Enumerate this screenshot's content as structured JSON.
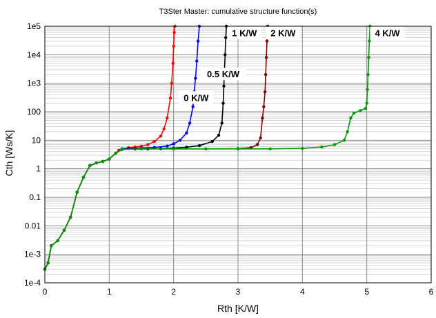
{
  "chart_data": {
    "type": "line",
    "title": "T3Ster Master: cumulative structure function(s)",
    "xlabel": "Rth  [K/W]",
    "ylabel": "Cth  [Ws/K]",
    "xlim": [
      0,
      6
    ],
    "ylim": [
      0.0001,
      100000
    ],
    "y_scale": "log",
    "grid": true,
    "x_ticks": [
      "0",
      "1",
      "2",
      "3",
      "4",
      "5",
      "6"
    ],
    "y_ticks": [
      "1e-4",
      "1e-3",
      "0.01",
      "0.1",
      "1",
      "10",
      "100",
      "1e3",
      "1e4",
      "1e5"
    ],
    "x_tick_values": [
      0,
      1,
      2,
      3,
      4,
      5,
      6
    ],
    "y_tick_values": [
      0.0001,
      0.001,
      0.01,
      0.1,
      1,
      10,
      100,
      1000,
      10000,
      100000
    ],
    "series": [
      {
        "name": "0 K/W",
        "color": "#ff0000",
        "x": [
          0.0,
          0.05,
          0.1,
          0.2,
          0.3,
          0.4,
          0.5,
          0.6,
          0.7,
          0.8,
          0.9,
          1.0,
          1.1,
          1.15,
          1.2,
          1.3,
          1.4,
          1.5,
          1.6,
          1.7,
          1.8,
          1.85,
          1.9,
          1.95,
          1.97,
          1.99,
          2.0,
          2.01,
          2.02
        ],
        "y": [
          0.0003,
          0.0005,
          0.002,
          0.003,
          0.007,
          0.02,
          0.15,
          0.5,
          1.3,
          1.6,
          1.8,
          2.2,
          3.5,
          4.5,
          5,
          5.5,
          5.8,
          6.2,
          7,
          9,
          14,
          25,
          60,
          300,
          1000,
          5000,
          20000,
          60000,
          100000
        ]
      },
      {
        "name": "0.5 K/W",
        "color": "#0000ff",
        "x": [
          0.0,
          0.05,
          0.1,
          0.2,
          0.3,
          0.4,
          0.5,
          0.6,
          0.7,
          0.8,
          0.9,
          1.0,
          1.1,
          1.2,
          1.3,
          1.5,
          1.7,
          1.9,
          2.0,
          2.1,
          2.2,
          2.25,
          2.3,
          2.32,
          2.34,
          2.36,
          2.38,
          2.4
        ],
        "y": [
          0.0003,
          0.0005,
          0.002,
          0.003,
          0.007,
          0.02,
          0.15,
          0.5,
          1.3,
          1.6,
          1.8,
          2.2,
          3.5,
          5,
          5.2,
          5.4,
          5.6,
          6.3,
          7.5,
          10,
          18,
          40,
          150,
          500,
          1500,
          6000,
          30000,
          100000
        ]
      },
      {
        "name": "1 K/W",
        "color": "#000000",
        "x": [
          0.0,
          0.05,
          0.1,
          0.2,
          0.3,
          0.4,
          0.5,
          0.6,
          0.7,
          0.8,
          0.9,
          1.0,
          1.1,
          1.2,
          1.4,
          1.6,
          1.8,
          2.0,
          2.2,
          2.4,
          2.6,
          2.7,
          2.75,
          2.77,
          2.78,
          2.79,
          2.8,
          2.81,
          2.82
        ],
        "y": [
          0.0003,
          0.0005,
          0.002,
          0.003,
          0.007,
          0.02,
          0.15,
          0.5,
          1.3,
          1.6,
          1.8,
          2.2,
          3.5,
          4.8,
          5.0,
          5.0,
          5.1,
          5.3,
          5.7,
          6.5,
          9,
          15,
          40,
          200,
          800,
          3000,
          10000,
          40000,
          100000
        ]
      },
      {
        "name": "2 K/W",
        "color": "#800000",
        "x": [
          0.0,
          0.05,
          0.1,
          0.2,
          0.3,
          0.4,
          0.5,
          0.6,
          0.7,
          0.8,
          0.9,
          1.0,
          1.1,
          1.2,
          1.5,
          2.0,
          2.5,
          3.0,
          3.2,
          3.3,
          3.35,
          3.38,
          3.4,
          3.42,
          3.43,
          3.44,
          3.45,
          3.46
        ],
        "y": [
          0.0003,
          0.0005,
          0.002,
          0.003,
          0.007,
          0.02,
          0.15,
          0.5,
          1.3,
          1.6,
          1.8,
          2.2,
          3.5,
          4.8,
          5.0,
          5.0,
          5.0,
          5.1,
          5.5,
          7,
          12,
          60,
          150,
          500,
          2000,
          8000,
          30000,
          100000
        ]
      },
      {
        "name": "4 K/W",
        "color": "#009900",
        "x": [
          0.0,
          0.05,
          0.1,
          0.2,
          0.3,
          0.4,
          0.5,
          0.6,
          0.7,
          0.8,
          0.9,
          1.0,
          1.1,
          1.2,
          1.5,
          2.0,
          2.5,
          3.0,
          3.5,
          4.0,
          4.3,
          4.5,
          4.65,
          4.7,
          4.75,
          4.8,
          4.9,
          4.98,
          5.0,
          5.01,
          5.02,
          5.03,
          5.04,
          5.05
        ],
        "y": [
          0.0003,
          0.0005,
          0.002,
          0.003,
          0.007,
          0.02,
          0.15,
          0.5,
          1.3,
          1.6,
          1.8,
          2.2,
          3.5,
          4.8,
          5.0,
          5.0,
          5.0,
          5.0,
          5.0,
          5.2,
          5.8,
          7,
          10,
          20,
          60,
          90,
          110,
          130,
          200,
          600,
          2000,
          8000,
          30000,
          100000
        ]
      }
    ],
    "annotations": [
      {
        "text": "0 K/W",
        "x": 2.35,
        "y": 300
      },
      {
        "text": "0.5 K/W",
        "x": 2.77,
        "y": 2000
      },
      {
        "text": "1 K/W",
        "x": 3.1,
        "y": 55000
      },
      {
        "text": "2 K/W",
        "x": 3.7,
        "y": 55000
      },
      {
        "text": "4 K/W",
        "x": 5.32,
        "y": 55000
      }
    ]
  }
}
